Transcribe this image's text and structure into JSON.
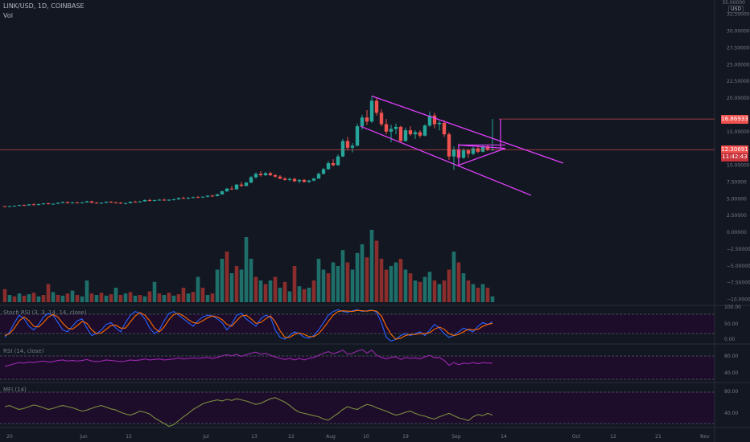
{
  "header": {
    "symbol": "LINK/USD, 1D, COINBASE",
    "vol_label": "Vol",
    "currency": "USD",
    "top_tick": "35.00000"
  },
  "colors": {
    "background": "#131722",
    "up": "#26a69a",
    "down": "#ef5350",
    "vol_up": "#1e6f6a",
    "vol_down": "#8a2d2d",
    "drawing": "#e040fb",
    "stoch_k": "#2962ff",
    "stoch_d": "#ff6d00",
    "rsi": "#9c27b0",
    "mfi": "#7e8c3e",
    "pane_fill": "#1d0d2b",
    "last_price_line": "#ef5350"
  },
  "price_axis": {
    "ticks": [
      "32.50000",
      "30.00000",
      "27.50000",
      "25.00000",
      "22.50000",
      "20.00000",
      "15.00000",
      "10.00000",
      "7.50000",
      "5.00000",
      "2.50000",
      "0.00000",
      "−2.50000",
      "−5.00000",
      "−7.50000",
      "−10.00000"
    ],
    "labels": [
      {
        "text": "16.86933",
        "value": 16.869
      },
      {
        "text": "12.30691",
        "value": 12.307
      },
      {
        "text": "11:42:43",
        "value": 11.2
      }
    ]
  },
  "x_axis": {
    "labels": [
      "20",
      "Jun",
      "15",
      "Jul",
      "13",
      "22",
      "Aug",
      "10",
      "19",
      "Sep",
      "14",
      "Oct",
      "12",
      "21",
      "Nov"
    ]
  },
  "indicators": {
    "stoch": {
      "label": "Stoch RSI (3, 3, 14, 14, close)",
      "ticks": [
        "100.00",
        "50.00",
        "0.00"
      ]
    },
    "rsi": {
      "label": "RSI (14, close)",
      "ticks": [
        "80.00",
        "40.00"
      ]
    },
    "mfi": {
      "label": "MFI (14)",
      "ticks": [
        "80.00",
        "40.00"
      ]
    }
  },
  "chart_data": {
    "type": "candlestick",
    "ylim": [
      -10,
      35
    ],
    "candles": [
      [
        3.88,
        3.92,
        3.8,
        3.85
      ],
      [
        3.85,
        3.95,
        3.78,
        3.9
      ],
      [
        3.9,
        4.0,
        3.85,
        3.95
      ],
      [
        3.95,
        4.1,
        3.9,
        4.05
      ],
      [
        4.05,
        4.15,
        3.95,
        4.0
      ],
      [
        4.0,
        4.2,
        3.98,
        4.15
      ],
      [
        4.15,
        4.3,
        4.05,
        4.1
      ],
      [
        4.1,
        4.25,
        4.0,
        4.2
      ],
      [
        4.2,
        4.35,
        4.1,
        4.3
      ],
      [
        4.3,
        4.4,
        4.15,
        4.2
      ],
      [
        4.2,
        4.3,
        4.1,
        4.25
      ],
      [
        4.25,
        4.45,
        4.2,
        4.4
      ],
      [
        4.4,
        4.6,
        4.3,
        4.5
      ],
      [
        4.5,
        4.6,
        4.3,
        4.35
      ],
      [
        4.35,
        4.5,
        4.25,
        4.45
      ],
      [
        4.45,
        4.55,
        4.35,
        4.4
      ],
      [
        4.4,
        4.5,
        4.3,
        4.45
      ],
      [
        4.45,
        4.7,
        4.4,
        4.6
      ],
      [
        4.6,
        4.7,
        4.35,
        4.4
      ],
      [
        4.4,
        4.5,
        4.25,
        4.3
      ],
      [
        4.3,
        4.45,
        4.2,
        4.4
      ],
      [
        4.4,
        4.6,
        4.35,
        4.55
      ],
      [
        4.55,
        4.65,
        4.4,
        4.45
      ],
      [
        4.45,
        4.55,
        4.3,
        4.4
      ],
      [
        4.4,
        4.5,
        4.2,
        4.3
      ],
      [
        4.3,
        4.4,
        4.15,
        4.35
      ],
      [
        4.35,
        4.6,
        4.3,
        4.55
      ],
      [
        4.55,
        4.7,
        4.45,
        4.5
      ],
      [
        4.5,
        4.65,
        4.4,
        4.6
      ],
      [
        4.6,
        4.9,
        4.55,
        4.8
      ],
      [
        4.8,
        5.0,
        4.6,
        4.7
      ],
      [
        4.7,
        4.85,
        4.6,
        4.8
      ],
      [
        4.8,
        4.95,
        4.7,
        4.85
      ],
      [
        4.85,
        5.0,
        4.7,
        4.75
      ],
      [
        4.75,
        4.9,
        4.65,
        4.85
      ],
      [
        4.85,
        5.0,
        4.75,
        4.9
      ],
      [
        4.9,
        5.15,
        4.85,
        5.1
      ],
      [
        5.1,
        5.3,
        5.0,
        5.05
      ],
      [
        5.05,
        5.2,
        4.9,
        5.15
      ],
      [
        5.15,
        5.3,
        5.05,
        5.25
      ],
      [
        5.25,
        5.4,
        5.1,
        5.2
      ],
      [
        5.2,
        5.35,
        5.1,
        5.3
      ],
      [
        5.3,
        5.5,
        5.2,
        5.45
      ],
      [
        5.45,
        5.6,
        5.3,
        5.4
      ],
      [
        5.4,
        5.7,
        5.35,
        5.65
      ],
      [
        5.65,
        6.2,
        5.6,
        6.1
      ],
      [
        6.1,
        6.6,
        6.0,
        6.5
      ],
      [
        6.5,
        6.9,
        6.3,
        6.4
      ],
      [
        6.4,
        7.2,
        6.35,
        7.1
      ],
      [
        7.1,
        7.5,
        6.8,
        6.9
      ],
      [
        6.9,
        7.5,
        6.85,
        7.4
      ],
      [
        7.4,
        8.4,
        7.3,
        8.2
      ],
      [
        8.2,
        8.9,
        8.0,
        8.7
      ],
      [
        8.7,
        9.1,
        8.3,
        8.5
      ],
      [
        8.5,
        9.0,
        8.4,
        8.8
      ],
      [
        8.8,
        9.0,
        8.4,
        8.5
      ],
      [
        8.5,
        8.7,
        8.1,
        8.3
      ],
      [
        8.3,
        8.5,
        7.9,
        8.0
      ],
      [
        8.0,
        8.2,
        7.7,
        7.8
      ],
      [
        7.8,
        8.1,
        7.6,
        7.95
      ],
      [
        7.95,
        8.1,
        7.5,
        7.6
      ],
      [
        7.6,
        7.9,
        7.3,
        7.8
      ],
      [
        7.8,
        7.95,
        7.4,
        7.5
      ],
      [
        7.5,
        7.8,
        7.35,
        7.7
      ],
      [
        7.7,
        8.1,
        7.6,
        8.0
      ],
      [
        8.0,
        8.9,
        7.95,
        8.7
      ],
      [
        8.7,
        9.6,
        8.6,
        9.4
      ],
      [
        9.4,
        10.6,
        9.3,
        10.3
      ],
      [
        10.3,
        10.9,
        9.8,
        10.0
      ],
      [
        10.0,
        11.6,
        9.9,
        11.3
      ],
      [
        11.3,
        13.9,
        11.2,
        13.6
      ],
      [
        13.6,
        14.2,
        12.2,
        12.6
      ],
      [
        12.6,
        13.3,
        11.9,
        12.9
      ],
      [
        12.9,
        16.2,
        12.8,
        15.8
      ],
      [
        15.8,
        17.5,
        15.3,
        17.1
      ],
      [
        17.1,
        18.2,
        16.0,
        16.5
      ],
      [
        16.5,
        20.3,
        16.3,
        19.6
      ],
      [
        19.6,
        20.1,
        17.4,
        17.8
      ],
      [
        17.8,
        18.3,
        15.8,
        16.1
      ],
      [
        16.1,
        16.9,
        14.6,
        15.0
      ],
      [
        15.0,
        16.0,
        13.4,
        15.4
      ],
      [
        15.4,
        16.2,
        14.6,
        15.7
      ],
      [
        15.7,
        15.9,
        13.3,
        13.6
      ],
      [
        13.6,
        15.6,
        13.5,
        15.2
      ],
      [
        15.2,
        15.8,
        14.4,
        14.6
      ],
      [
        14.6,
        15.2,
        13.9,
        14.9
      ],
      [
        14.9,
        15.2,
        14.1,
        14.4
      ],
      [
        14.4,
        16.1,
        14.3,
        15.9
      ],
      [
        15.9,
        18.0,
        15.7,
        17.4
      ],
      [
        17.4,
        17.8,
        15.5,
        16.1
      ],
      [
        16.1,
        16.6,
        15.2,
        16.3
      ],
      [
        16.3,
        16.7,
        14.2,
        14.6
      ],
      [
        14.6,
        14.9,
        10.8,
        11.3
      ],
      [
        11.3,
        12.8,
        9.3,
        12.3
      ],
      [
        12.3,
        13.2,
        10.7,
        11.1
      ],
      [
        11.1,
        12.5,
        10.9,
        12.2
      ],
      [
        12.2,
        12.4,
        11.1,
        11.7
      ],
      [
        11.7,
        12.7,
        11.5,
        12.5
      ],
      [
        12.5,
        12.9,
        11.8,
        12.0
      ],
      [
        12.0,
        13.0,
        11.9,
        12.8
      ],
      [
        12.8,
        13.1,
        12.1,
        12.3
      ],
      [
        12.3,
        16.87,
        12.2,
        12.31
      ]
    ],
    "volume": [
      [
        0.18,
        0
      ],
      [
        0.1,
        1
      ],
      [
        0.08,
        0
      ],
      [
        0.12,
        1
      ],
      [
        0.09,
        0
      ],
      [
        0.11,
        1
      ],
      [
        0.13,
        0
      ],
      [
        0.08,
        1
      ],
      [
        0.1,
        0
      ],
      [
        0.25,
        0
      ],
      [
        0.14,
        1
      ],
      [
        0.1,
        0
      ],
      [
        0.09,
        1
      ],
      [
        0.12,
        0
      ],
      [
        0.16,
        1
      ],
      [
        0.1,
        0
      ],
      [
        0.08,
        1
      ],
      [
        0.3,
        1
      ],
      [
        0.12,
        0
      ],
      [
        0.1,
        1
      ],
      [
        0.13,
        0
      ],
      [
        0.09,
        1
      ],
      [
        0.11,
        0
      ],
      [
        0.2,
        1
      ],
      [
        0.1,
        0
      ],
      [
        0.12,
        1
      ],
      [
        0.14,
        0
      ],
      [
        0.09,
        1
      ],
      [
        0.1,
        0
      ],
      [
        0.08,
        1
      ],
      [
        0.15,
        0
      ],
      [
        0.28,
        1
      ],
      [
        0.12,
        0
      ],
      [
        0.1,
        1
      ],
      [
        0.13,
        0
      ],
      [
        0.09,
        1
      ],
      [
        0.11,
        0
      ],
      [
        0.2,
        0
      ],
      [
        0.12,
        1
      ],
      [
        0.14,
        0
      ],
      [
        0.35,
        1
      ],
      [
        0.2,
        0
      ],
      [
        0.1,
        1
      ],
      [
        0.12,
        0
      ],
      [
        0.45,
        1
      ],
      [
        0.6,
        1
      ],
      [
        0.7,
        0
      ],
      [
        0.4,
        1
      ],
      [
        0.5,
        0
      ],
      [
        0.45,
        1
      ],
      [
        0.9,
        1
      ],
      [
        0.6,
        1
      ],
      [
        0.35,
        0
      ],
      [
        0.3,
        1
      ],
      [
        0.25,
        0
      ],
      [
        0.3,
        1
      ],
      [
        0.35,
        0
      ],
      [
        0.2,
        1
      ],
      [
        0.28,
        0
      ],
      [
        0.15,
        1
      ],
      [
        0.5,
        0
      ],
      [
        0.22,
        1
      ],
      [
        0.18,
        0
      ],
      [
        0.2,
        1
      ],
      [
        0.3,
        0
      ],
      [
        0.6,
        1
      ],
      [
        0.45,
        1
      ],
      [
        0.4,
        0
      ],
      [
        0.55,
        1
      ],
      [
        0.5,
        1
      ],
      [
        0.72,
        1
      ],
      [
        0.55,
        0
      ],
      [
        0.45,
        1
      ],
      [
        0.68,
        1
      ],
      [
        0.8,
        1
      ],
      [
        0.62,
        0
      ],
      [
        1.0,
        1
      ],
      [
        0.85,
        0
      ],
      [
        0.6,
        0
      ],
      [
        0.45,
        0
      ],
      [
        0.5,
        1
      ],
      [
        0.55,
        1
      ],
      [
        0.6,
        0
      ],
      [
        0.45,
        1
      ],
      [
        0.4,
        0
      ],
      [
        0.3,
        1
      ],
      [
        0.28,
        0
      ],
      [
        0.35,
        1
      ],
      [
        0.42,
        1
      ],
      [
        0.3,
        0
      ],
      [
        0.25,
        1
      ],
      [
        0.3,
        0
      ],
      [
        0.45,
        0
      ],
      [
        0.7,
        1
      ],
      [
        0.55,
        0
      ],
      [
        0.4,
        1
      ],
      [
        0.3,
        0
      ],
      [
        0.25,
        1
      ],
      [
        0.2,
        0
      ],
      [
        0.25,
        1
      ],
      [
        0.2,
        0
      ],
      [
        0.08,
        1
      ]
    ],
    "stoch_k": [
      20,
      35,
      60,
      80,
      70,
      50,
      40,
      55,
      75,
      85,
      80,
      60,
      40,
      35,
      50,
      65,
      70,
      45,
      25,
      30,
      40,
      55,
      60,
      45,
      35,
      60,
      80,
      90,
      85,
      70,
      45,
      30,
      40,
      65,
      85,
      90,
      80,
      70,
      60,
      50,
      65,
      75,
      80,
      78,
      70,
      60,
      40,
      55,
      80,
      85,
      70,
      60,
      50,
      70,
      80,
      75,
      40,
      20,
      15,
      25,
      35,
      30,
      20,
      18,
      25,
      40,
      60,
      80,
      90,
      95,
      90,
      88,
      92,
      95,
      90,
      92,
      94,
      88,
      60,
      20,
      10,
      15,
      25,
      30,
      25,
      30,
      35,
      25,
      40,
      55,
      45,
      30,
      20,
      25,
      35,
      45,
      40,
      35,
      50,
      60,
      55,
      62
    ],
    "stoch_d": [
      25,
      30,
      45,
      65,
      75,
      65,
      50,
      48,
      60,
      75,
      82,
      75,
      58,
      45,
      42,
      52,
      63,
      58,
      40,
      30,
      32,
      42,
      52,
      53,
      45,
      45,
      62,
      78,
      87,
      80,
      65,
      45,
      35,
      48,
      68,
      82,
      85,
      78,
      68,
      60,
      58,
      65,
      73,
      78,
      75,
      68,
      55,
      50,
      65,
      78,
      80,
      70,
      58,
      60,
      70,
      78,
      62,
      38,
      20,
      20,
      28,
      32,
      28,
      22,
      22,
      30,
      45,
      63,
      80,
      90,
      92,
      91,
      90,
      93,
      92,
      91,
      93,
      91,
      78,
      50,
      28,
      15,
      18,
      25,
      28,
      28,
      30,
      30,
      33,
      42,
      48,
      42,
      30,
      25,
      28,
      35,
      42,
      40,
      42,
      50,
      55,
      58
    ],
    "rsi": [
      45,
      47,
      50,
      52,
      51,
      53,
      52,
      54,
      55,
      53,
      54,
      56,
      57,
      55,
      56,
      55,
      56,
      58,
      55,
      54,
      55,
      57,
      56,
      55,
      54,
      55,
      57,
      56,
      57,
      59,
      57,
      58,
      59,
      57,
      58,
      59,
      61,
      59,
      60,
      61,
      60,
      61,
      62,
      60,
      62,
      65,
      67,
      65,
      68,
      64,
      67,
      70,
      72,
      68,
      70,
      66,
      63,
      60,
      58,
      60,
      57,
      60,
      57,
      60,
      62,
      66,
      70,
      73,
      69,
      72,
      76,
      68,
      70,
      74,
      77,
      70,
      76,
      66,
      62,
      59,
      62,
      63,
      58,
      62,
      60,
      61,
      59,
      63,
      66,
      61,
      62,
      56,
      47,
      52,
      48,
      51,
      50,
      52,
      50,
      52,
      51,
      51
    ],
    "mfi": [
      60,
      62,
      58,
      55,
      57,
      60,
      63,
      61,
      58,
      55,
      57,
      60,
      62,
      60,
      58,
      55,
      52,
      54,
      57,
      60,
      62,
      59,
      56,
      54,
      50,
      47,
      45,
      48,
      52,
      50,
      47,
      40,
      35,
      30,
      25,
      28,
      35,
      42,
      48,
      55,
      60,
      65,
      68,
      70,
      72,
      70,
      73,
      71,
      74,
      72,
      70,
      67,
      64,
      66,
      70,
      74,
      76,
      72,
      68,
      62,
      55,
      50,
      48,
      46,
      44,
      42,
      38,
      36,
      42,
      48,
      55,
      60,
      57,
      55,
      60,
      64,
      62,
      58,
      55,
      52,
      48,
      45,
      47,
      50,
      52,
      48,
      45,
      43,
      40,
      38,
      42,
      45,
      48,
      44,
      40,
      38,
      35,
      42,
      46,
      44,
      48,
      45
    ]
  }
}
